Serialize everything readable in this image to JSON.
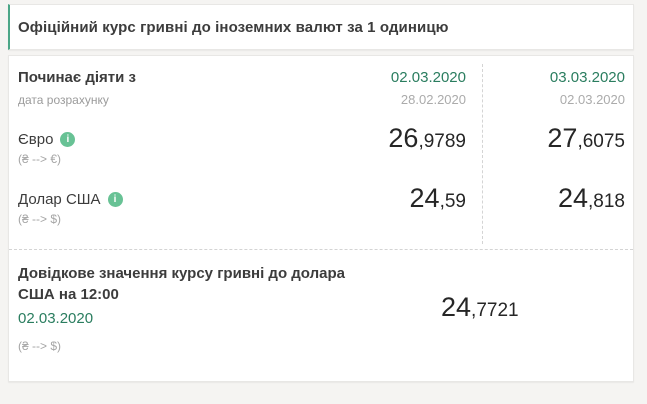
{
  "colors": {
    "accent_green": "#2a7d5f",
    "info_icon_green": "#68c295",
    "title_card_border_green": "#4ba687",
    "page_background": "#f5f4f2"
  },
  "header": {
    "title": "Офіційний курс гривні до іноземних валют за 1 одиницю"
  },
  "rates": {
    "header": {
      "label": "Починає діяти з",
      "sublabel": "дата розрахунку"
    },
    "columns": [
      {
        "effective_date": "02.03.2020",
        "calc_date": "28.02.2020"
      },
      {
        "effective_date": "03.03.2020",
        "calc_date": "02.03.2020"
      }
    ],
    "rows": [
      {
        "name": "Євро",
        "pair": "(₴ --> €)",
        "values": [
          {
            "int": "26",
            "frac": ",9789"
          },
          {
            "int": "27",
            "frac": ",6075"
          }
        ]
      },
      {
        "name": "Долар США",
        "pair": "(₴ --> $)",
        "values": [
          {
            "int": "24",
            "frac": ",59"
          },
          {
            "int": "24",
            "frac": ",818"
          }
        ]
      }
    ]
  },
  "reference": {
    "label_line1": "Довідкове значення курсу гривні до долара",
    "label_line2": "США на 12:00",
    "date": "02.03.2020",
    "pair": "(₴ --> $)",
    "value": {
      "int": "24",
      "frac": ",7721"
    }
  },
  "icons": {
    "info_glyph": "i"
  }
}
